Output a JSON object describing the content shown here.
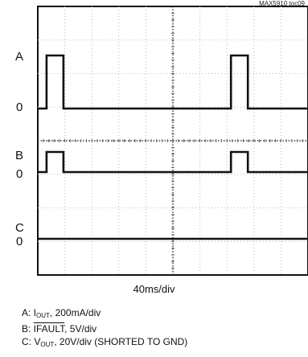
{
  "figure_id": "MAX5910 toc09",
  "timebase": "40ms/div",
  "labels": {
    "a": "A",
    "a_zero": "0",
    "b": "B",
    "b_zero": "0",
    "c": "C",
    "c_zero": "0"
  },
  "legend": {
    "a_prefix": "A: I",
    "a_sub": "OUT",
    "a_rest": ", 200mA/div",
    "b_prefix": "B: ",
    "b_over": "IFAULT",
    "b_rest": ", 5V/div",
    "c_prefix": "C: V",
    "c_sub": "OUT",
    "c_rest": ", 20V/div (SHORTED TO GND)"
  },
  "chart_data": {
    "type": "line",
    "grid": true,
    "x_unit": "ms",
    "xlim": [
      0,
      400
    ],
    "series": [
      {
        "label": "A",
        "x": [
          0,
          13,
          13,
          38,
          38,
          286,
          286,
          311,
          311,
          400
        ],
        "y": [
          0,
          0,
          2,
          2,
          0,
          0,
          2,
          2,
          0,
          0
        ]
      },
      {
        "label": "B",
        "x": [
          0,
          13,
          13,
          38,
          38,
          286,
          286,
          311,
          311,
          400
        ],
        "y": [
          0,
          0,
          1,
          1,
          0,
          0,
          1,
          1,
          0,
          0
        ]
      },
      {
        "label": "C",
        "x": [
          0,
          400
        ],
        "y": [
          0,
          0
        ]
      }
    ]
  }
}
